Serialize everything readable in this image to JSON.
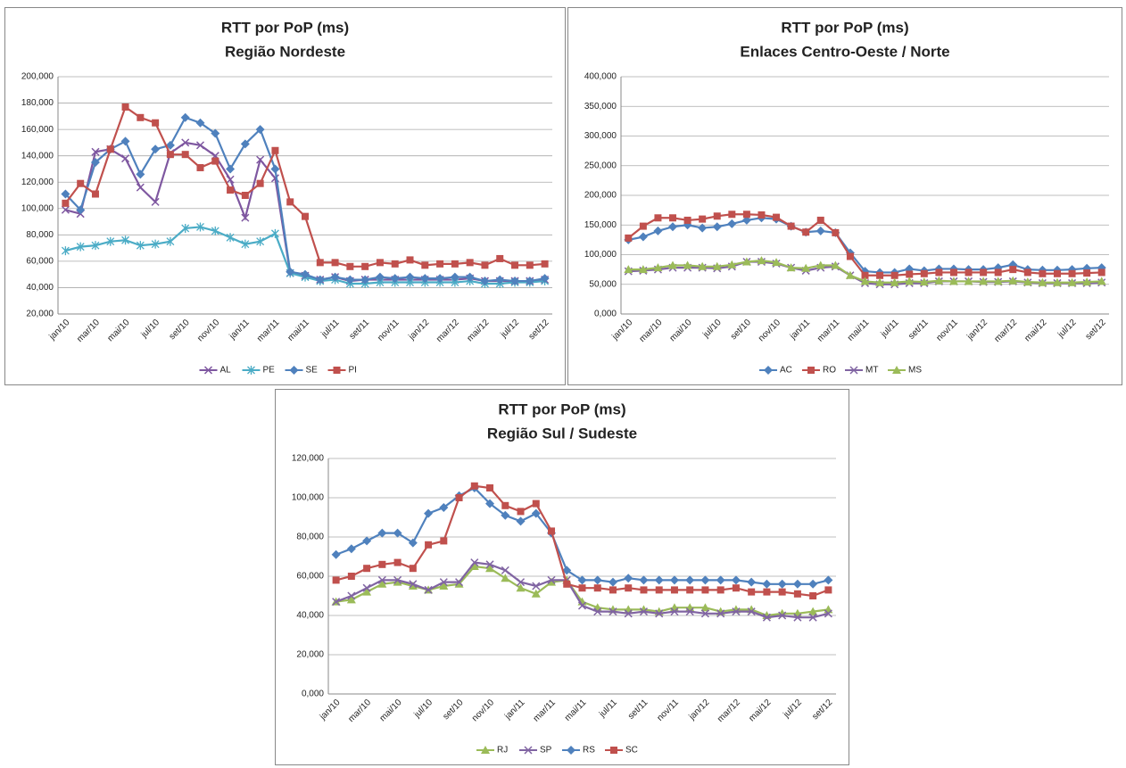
{
  "chart_data": [
    {
      "type": "line",
      "title": "RTT por PoP (ms)",
      "subtitle": "Região Nordeste",
      "categories": [
        "jan/10",
        null,
        "mar/10",
        null,
        "mai/10",
        null,
        "jul/10",
        null,
        "set/10",
        null,
        "nov/10",
        null,
        "jan/11",
        null,
        "mar/11",
        null,
        "mai/11",
        null,
        "jul/11",
        null,
        "set/11",
        null,
        "nov/11",
        null,
        "jan/12",
        null,
        "mar/12",
        null,
        "mai/12",
        null,
        "jul/12",
        null,
        "set/12"
      ],
      "ylim": [
        20,
        200
      ],
      "yticks": [
        {
          "value": 20,
          "label": "20,000"
        },
        {
          "value": 40,
          "label": "40,000"
        },
        {
          "value": 60,
          "label": "60,000"
        },
        {
          "value": 80,
          "label": "80,000"
        },
        {
          "value": 100,
          "label": "100,000"
        },
        {
          "value": 120,
          "label": "120,000"
        },
        {
          "value": 140,
          "label": "140,000"
        },
        {
          "value": 160,
          "label": "160,000"
        },
        {
          "value": 180,
          "label": "180,000"
        },
        {
          "value": 200,
          "label": "200,000"
        }
      ],
      "grid": true,
      "legend": "bottom",
      "series": [
        {
          "name": "AL",
          "color": "#7e57a0",
          "marker": "x",
          "values": [
            99,
            96,
            143,
            145,
            138,
            116,
            105,
            142,
            150,
            148,
            140,
            122,
            93,
            137,
            123,
            51,
            49,
            46,
            48,
            45,
            46,
            46,
            46,
            46,
            46,
            46,
            46,
            47,
            45,
            45,
            45,
            45,
            46
          ]
        },
        {
          "name": "PE",
          "color": "#4bacc6",
          "marker": "star",
          "values": [
            68,
            71,
            72,
            75,
            76,
            72,
            73,
            75,
            85,
            86,
            83,
            78,
            73,
            75,
            81,
            51,
            48,
            45,
            46,
            43,
            43,
            44,
            44,
            44,
            44,
            44,
            44,
            45,
            43,
            43,
            44,
            44,
            45
          ]
        },
        {
          "name": "SE",
          "color": "#4f81bd",
          "marker": "diamond",
          "values": [
            111,
            99,
            135,
            145,
            151,
            126,
            145,
            148,
            169,
            165,
            157,
            130,
            149,
            160,
            130,
            52,
            50,
            46,
            48,
            46,
            46,
            48,
            47,
            48,
            47,
            47,
            48,
            48,
            45,
            46,
            45,
            45,
            47
          ]
        },
        {
          "name": "PI",
          "color": "#c0504d",
          "marker": "square",
          "values": [
            104,
            119,
            111,
            145,
            177,
            169,
            165,
            141,
            141,
            131,
            136,
            114,
            110,
            119,
            144,
            105,
            94,
            59,
            59,
            56,
            56,
            59,
            58,
            61,
            57,
            58,
            58,
            59,
            57,
            62,
            57,
            57,
            58
          ]
        }
      ]
    },
    {
      "type": "line",
      "title": "RTT por PoP (ms)",
      "subtitle": "Enlaces Centro-Oeste  / Norte",
      "categories": [
        "jan/10",
        null,
        "mar/10",
        null,
        "mai/10",
        null,
        "jul/10",
        null,
        "set/10",
        null,
        "nov/10",
        null,
        "jan/11",
        null,
        "mar/11",
        null,
        "mai/11",
        null,
        "jul/11",
        null,
        "set/11",
        null,
        "nov/11",
        null,
        "jan/12",
        null,
        "mar/12",
        null,
        "mai/12",
        null,
        "jul/12",
        null,
        "set/12"
      ],
      "ylim": [
        0,
        400
      ],
      "yticks": [
        {
          "value": 0,
          "label": "0,000"
        },
        {
          "value": 50,
          "label": "50,000"
        },
        {
          "value": 100,
          "label": "100,000"
        },
        {
          "value": 150,
          "label": "150,000"
        },
        {
          "value": 200,
          "label": "200,000"
        },
        {
          "value": 250,
          "label": "250,000"
        },
        {
          "value": 300,
          "label": "300,000"
        },
        {
          "value": 350,
          "label": "350,000"
        },
        {
          "value": 400,
          "label": "400,000"
        }
      ],
      "grid": true,
      "legend": "bottom",
      "series": [
        {
          "name": "AC",
          "color": "#4f81bd",
          "marker": "diamond",
          "values": [
            125,
            130,
            140,
            147,
            150,
            145,
            147,
            152,
            158,
            162,
            160,
            148,
            138,
            140,
            137,
            103,
            72,
            70,
            70,
            76,
            73,
            76,
            76,
            75,
            75,
            78,
            83,
            75,
            74,
            74,
            75,
            77,
            78
          ]
        },
        {
          "name": "RO",
          "color": "#c0504d",
          "marker": "square",
          "values": [
            128,
            148,
            162,
            162,
            158,
            160,
            165,
            168,
            168,
            167,
            163,
            148,
            138,
            158,
            137,
            97,
            65,
            65,
            65,
            67,
            68,
            70,
            70,
            70,
            70,
            70,
            75,
            70,
            68,
            68,
            68,
            69,
            70
          ]
        },
        {
          "name": "MT",
          "color": "#8064a2",
          "marker": "x",
          "values": [
            72,
            73,
            75,
            78,
            78,
            78,
            77,
            80,
            88,
            88,
            85,
            78,
            73,
            78,
            80,
            65,
            52,
            50,
            50,
            52,
            52,
            55,
            55,
            55,
            54,
            54,
            55,
            53,
            52,
            52,
            52,
            52,
            53
          ]
        },
        {
          "name": "MS",
          "color": "#9bbb59",
          "marker": "triangle",
          "values": [
            75,
            75,
            78,
            82,
            82,
            80,
            80,
            83,
            88,
            90,
            87,
            78,
            77,
            82,
            82,
            65,
            55,
            53,
            53,
            55,
            54,
            56,
            55,
            55,
            55,
            55,
            56,
            54,
            53,
            53,
            53,
            54,
            55
          ]
        }
      ]
    },
    {
      "type": "line",
      "title": "RTT por PoP (ms)",
      "subtitle": "Região  Sul / Sudeste",
      "categories": [
        "jan/10",
        null,
        "mar/10",
        null,
        "mai/10",
        null,
        "jul/10",
        null,
        "set/10",
        null,
        "nov/10",
        null,
        "jan/11",
        null,
        "mar/11",
        null,
        "mai/11",
        null,
        "jul/11",
        null,
        "set/11",
        null,
        "nov/11",
        null,
        "jan/12",
        null,
        "mar/12",
        null,
        "mai/12",
        null,
        "jul/12",
        null,
        "set/12"
      ],
      "ylim": [
        0,
        120
      ],
      "yticks": [
        {
          "value": 0,
          "label": "0,000"
        },
        {
          "value": 20,
          "label": "20,000"
        },
        {
          "value": 40,
          "label": "40,000"
        },
        {
          "value": 60,
          "label": "60,000"
        },
        {
          "value": 80,
          "label": "80,000"
        },
        {
          "value": 100,
          "label": "100,000"
        },
        {
          "value": 120,
          "label": "120,000"
        }
      ],
      "grid": true,
      "legend": "bottom",
      "series": [
        {
          "name": "RJ",
          "color": "#9bbb59",
          "marker": "triangle",
          "values": [
            47,
            48,
            52,
            56,
            57,
            55,
            53,
            55,
            56,
            65,
            64,
            59,
            54,
            51,
            57,
            58,
            47,
            44,
            43,
            43,
            43,
            42,
            44,
            44,
            44,
            42,
            43,
            43,
            40,
            41,
            41,
            42,
            43
          ]
        },
        {
          "name": "SP",
          "color": "#8064a2",
          "marker": "x",
          "values": [
            47,
            50,
            54,
            58,
            58,
            56,
            53,
            57,
            57,
            67,
            66,
            63,
            57,
            55,
            58,
            58,
            45,
            42,
            42,
            41,
            42,
            41,
            42,
            42,
            41,
            41,
            42,
            42,
            39,
            40,
            39,
            39,
            41
          ]
        },
        {
          "name": "RS",
          "color": "#4f81bd",
          "marker": "diamond",
          "values": [
            71,
            74,
            78,
            82,
            82,
            77,
            92,
            95,
            101,
            105,
            97,
            91,
            88,
            92,
            82,
            63,
            58,
            58,
            57,
            59,
            58,
            58,
            58,
            58,
            58,
            58,
            58,
            57,
            56,
            56,
            56,
            56,
            58
          ]
        },
        {
          "name": "SC",
          "color": "#c0504d",
          "marker": "square",
          "values": [
            58,
            60,
            64,
            66,
            67,
            64,
            76,
            78,
            100,
            106,
            105,
            96,
            93,
            97,
            83,
            56,
            54,
            54,
            53,
            54,
            53,
            53,
            53,
            53,
            53,
            53,
            54,
            52,
            52,
            52,
            51,
            50,
            53
          ]
        }
      ]
    }
  ]
}
